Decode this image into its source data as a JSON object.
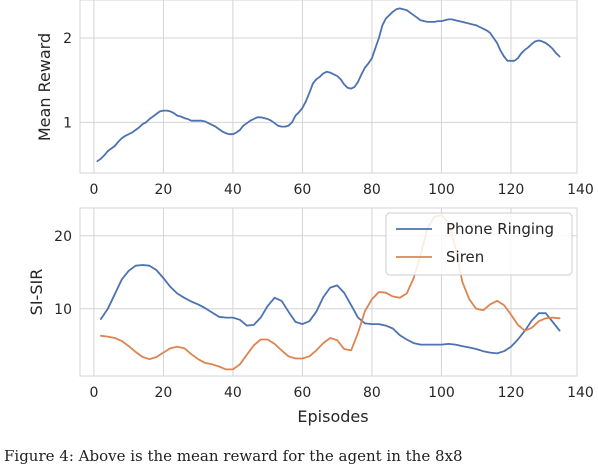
{
  "chart_data": [
    {
      "type": "line",
      "xlabel": "",
      "ylabel": "Mean Reward",
      "xlim": [
        -4,
        139
      ],
      "ylim": [
        0.4,
        2.45
      ],
      "xticks": [
        0,
        20,
        40,
        60,
        80,
        100,
        120,
        140
      ],
      "yticks": [
        1,
        2
      ],
      "grid": true,
      "series": [
        {
          "color": "#4c72b0",
          "x": [
            1,
            2,
            3,
            4,
            5,
            6,
            7,
            8,
            9,
            10,
            11,
            12,
            13,
            14,
            15,
            16,
            17,
            18,
            19,
            20,
            21,
            22,
            23,
            24,
            25,
            26,
            27,
            28,
            29,
            30,
            31,
            32,
            33,
            34,
            35,
            36,
            37,
            38,
            39,
            40,
            41,
            42,
            43,
            44,
            45,
            46,
            47,
            48,
            49,
            50,
            51,
            52,
            53,
            54,
            55,
            56,
            57,
            58,
            59,
            60,
            61,
            62,
            63,
            64,
            65,
            66,
            67,
            68,
            69,
            70,
            71,
            72,
            73,
            74,
            75,
            76,
            77,
            78,
            79,
            80,
            81,
            82,
            83,
            84,
            85,
            86,
            87,
            88,
            89,
            90,
            91,
            92,
            93,
            94,
            95,
            96,
            97,
            98,
            99,
            100,
            101,
            102,
            103,
            104,
            105,
            106,
            107,
            108,
            109,
            110,
            111,
            112,
            113,
            114,
            115,
            116,
            117,
            118,
            119,
            120,
            121,
            122,
            123,
            124,
            125,
            126,
            127,
            128,
            129,
            130,
            131,
            132,
            133,
            134
          ],
          "values": [
            0.54,
            0.57,
            0.61,
            0.66,
            0.69,
            0.72,
            0.77,
            0.81,
            0.84,
            0.86,
            0.88,
            0.91,
            0.94,
            0.98,
            1.0,
            1.04,
            1.07,
            1.1,
            1.13,
            1.14,
            1.14,
            1.13,
            1.11,
            1.08,
            1.07,
            1.05,
            1.04,
            1.02,
            1.02,
            1.02,
            1.02,
            1.01,
            0.99,
            0.97,
            0.95,
            0.92,
            0.89,
            0.87,
            0.86,
            0.86,
            0.88,
            0.91,
            0.96,
            0.99,
            1.02,
            1.04,
            1.06,
            1.06,
            1.05,
            1.04,
            1.02,
            0.99,
            0.96,
            0.95,
            0.95,
            0.96,
            1.0,
            1.08,
            1.12,
            1.17,
            1.25,
            1.35,
            1.46,
            1.51,
            1.54,
            1.58,
            1.6,
            1.59,
            1.57,
            1.55,
            1.51,
            1.45,
            1.41,
            1.4,
            1.42,
            1.48,
            1.57,
            1.65,
            1.7,
            1.76,
            1.88,
            2.0,
            2.15,
            2.23,
            2.27,
            2.31,
            2.34,
            2.35,
            2.34,
            2.33,
            2.3,
            2.27,
            2.24,
            2.21,
            2.2,
            2.19,
            2.19,
            2.19,
            2.2,
            2.2,
            2.21,
            2.22,
            2.22,
            2.21,
            2.2,
            2.19,
            2.18,
            2.17,
            2.16,
            2.15,
            2.13,
            2.11,
            2.09,
            2.06,
            2.0,
            1.94,
            1.85,
            1.78,
            1.73,
            1.73,
            1.73,
            1.76,
            1.82,
            1.86,
            1.89,
            1.93,
            1.96,
            1.97,
            1.96,
            1.94,
            1.91,
            1.87,
            1.82,
            1.78
          ]
        }
      ]
    },
    {
      "type": "line",
      "xlabel": "Episodes",
      "ylabel": "SI-SIR",
      "xlim": [
        -4,
        139
      ],
      "ylim": [
        0.8,
        23.8
      ],
      "xticks": [
        0,
        20,
        40,
        60,
        80,
        100,
        120,
        140
      ],
      "yticks": [
        10,
        20
      ],
      "grid": true,
      "legend_position": "top-right",
      "series": [
        {
          "name": "Phone Ringing",
          "color": "#4c72b0",
          "x": [
            2,
            4,
            6,
            8,
            10,
            12,
            14,
            16,
            18,
            20,
            22,
            24,
            26,
            28,
            30,
            32,
            34,
            36,
            38,
            40,
            42,
            44,
            46,
            48,
            50,
            52,
            54,
            56,
            58,
            60,
            62,
            64,
            66,
            68,
            70,
            72,
            74,
            76,
            78,
            80,
            82,
            84,
            86,
            88,
            90,
            92,
            94,
            96,
            98,
            100,
            102,
            104,
            106,
            108,
            110,
            112,
            114,
            116,
            118,
            120,
            122,
            124,
            126,
            128,
            130,
            132,
            134
          ],
          "values": [
            8.6,
            10,
            12,
            14,
            15.2,
            15.9,
            16,
            15.9,
            15.3,
            14.2,
            13,
            12.1,
            11.5,
            11,
            10.6,
            10.1,
            9.5,
            8.9,
            8.8,
            8.8,
            8.5,
            7.7,
            7.8,
            8.8,
            10.4,
            11.5,
            11.1,
            9.6,
            8.2,
            7.9,
            8.3,
            9.6,
            11.6,
            12.9,
            13.2,
            12.2,
            10.5,
            8.8,
            8.0,
            7.9,
            7.9,
            7.7,
            7.3,
            6.4,
            5.8,
            5.3,
            5.1,
            5.1,
            5.1,
            5.1,
            5.2,
            5.1,
            4.9,
            4.7,
            4.5,
            4.2,
            4.0,
            3.9,
            4.2,
            4.8,
            5.8,
            7.0,
            8.4,
            9.4,
            9.4,
            8.2,
            7.0
          ]
        },
        {
          "name": "Siren",
          "color": "#dd8452",
          "x": [
            2,
            4,
            6,
            8,
            10,
            12,
            14,
            16,
            18,
            20,
            22,
            24,
            26,
            28,
            30,
            32,
            34,
            36,
            38,
            40,
            42,
            44,
            46,
            48,
            50,
            52,
            54,
            56,
            58,
            60,
            62,
            64,
            66,
            68,
            70,
            72,
            74,
            76,
            78,
            80,
            82,
            84,
            86,
            88,
            90,
            92,
            94,
            96,
            98,
            100,
            102,
            104,
            106,
            108,
            110,
            112,
            114,
            116,
            118,
            120,
            122,
            124,
            126,
            128,
            130,
            132,
            134
          ],
          "values": [
            6.3,
            6.2,
            6.0,
            5.6,
            4.9,
            4.1,
            3.4,
            3.1,
            3.4,
            4.0,
            4.6,
            4.8,
            4.6,
            3.8,
            3.1,
            2.6,
            2.4,
            2.1,
            1.7,
            1.7,
            2.4,
            3.7,
            5.0,
            5.8,
            5.8,
            5.2,
            4.3,
            3.5,
            3.2,
            3.2,
            3.5,
            4.3,
            5.3,
            6.0,
            5.7,
            4.5,
            4.3,
            6.7,
            9.7,
            11.3,
            12.3,
            12.2,
            11.7,
            11.5,
            12.1,
            14.2,
            17.4,
            21.1,
            22.6,
            22.8,
            21.8,
            18.4,
            13.7,
            11.3,
            10.0,
            9.8,
            10.6,
            11.1,
            10.5,
            9.2,
            7.8,
            7.0,
            7.4,
            8.3,
            8.7,
            8.8,
            8.7
          ]
        }
      ]
    }
  ],
  "caption": "Figure 4: Above is the mean reward for the agent in the 8x8"
}
